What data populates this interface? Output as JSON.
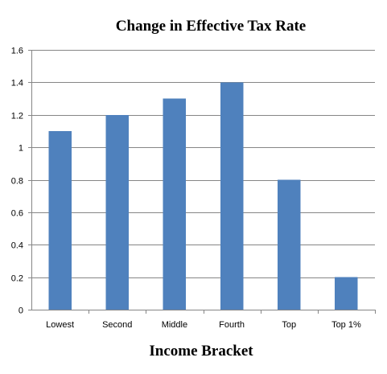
{
  "chart_data": {
    "type": "bar",
    "title": "Change in Effective Tax Rate",
    "xlabel": "Income Bracket",
    "ylabel": "",
    "categories": [
      "Lowest",
      "Second",
      "Middle",
      "Fourth",
      "Top",
      "Top 1%"
    ],
    "values": [
      1.1,
      1.2,
      1.3,
      1.4,
      0.8,
      0.2
    ],
    "ylim": [
      0,
      1.6
    ],
    "yticks": [
      "0",
      "0.2",
      "0.4",
      "0.6",
      "0.8",
      "1",
      "1.2",
      "1.4",
      "1.6"
    ],
    "grid": true,
    "legend": "none",
    "bar_color": "#4f81bd"
  }
}
